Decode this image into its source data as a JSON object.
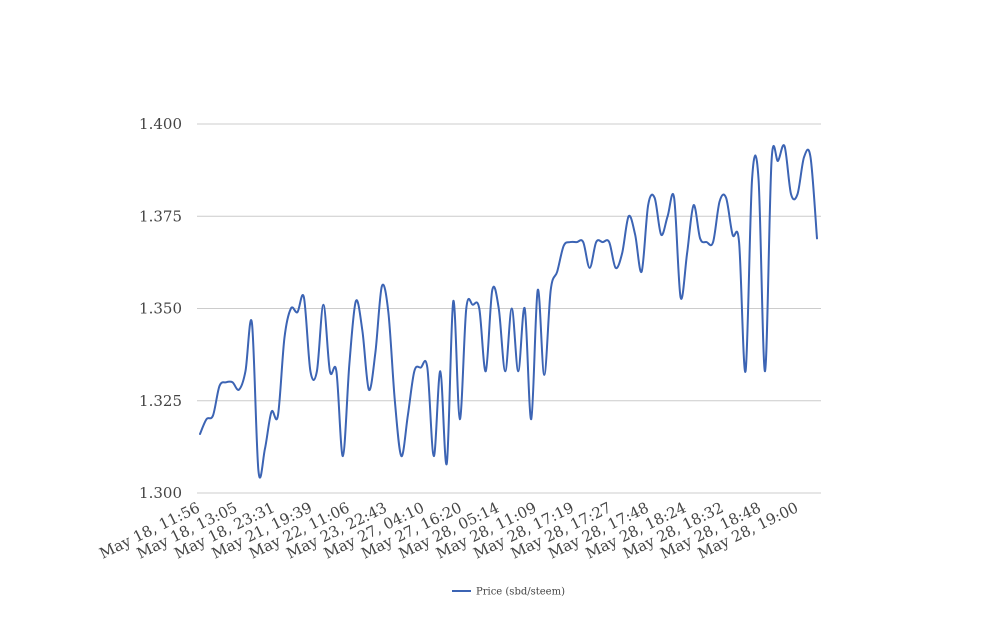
{
  "chart_data": {
    "type": "line",
    "title": "",
    "xlabel": "",
    "ylabel": "",
    "ylim": [
      1.3,
      1.4
    ],
    "y_ticks": [
      "1.300",
      "1.325",
      "1.350",
      "1.375",
      "1.400"
    ],
    "y_tick_values": [
      1.3,
      1.325,
      1.35,
      1.375,
      1.4
    ],
    "x_tick_labels": [
      "May 18, 11:56",
      "May 18, 13:05",
      "May 18, 23:31",
      "May 21, 19:39",
      "May 22, 11:06",
      "May 23, 22:43",
      "May 27, 04:10",
      "May 27, 16:20",
      "May 28, 05:14",
      "May 28, 11:09",
      "May 28, 17:19",
      "May 28, 17:27",
      "May 28, 17:48",
      "May 28, 18:24",
      "May 28, 18:32",
      "May 28, 18:48",
      "May 28, 19:00"
    ],
    "grid": true,
    "legend_position": "bottom",
    "series": [
      {
        "name": "Price (sbd/steem)",
        "color": "#3c64b4",
        "values": [
          1.316,
          1.32,
          1.321,
          1.329,
          1.33,
          1.33,
          1.328,
          1.333,
          1.346,
          1.306,
          1.312,
          1.322,
          1.321,
          1.342,
          1.35,
          1.349,
          1.353,
          1.333,
          1.333,
          1.351,
          1.333,
          1.333,
          1.31,
          1.335,
          1.352,
          1.344,
          1.328,
          1.338,
          1.356,
          1.349,
          1.325,
          1.31,
          1.321,
          1.333,
          1.334,
          1.334,
          1.31,
          1.333,
          1.308,
          1.352,
          1.32,
          1.35,
          1.351,
          1.35,
          1.333,
          1.355,
          1.35,
          1.333,
          1.35,
          1.333,
          1.35,
          1.32,
          1.355,
          1.332,
          1.355,
          1.36,
          1.367,
          1.368,
          1.368,
          1.368,
          1.361,
          1.368,
          1.368,
          1.368,
          1.361,
          1.365,
          1.375,
          1.37,
          1.36,
          1.378,
          1.38,
          1.37,
          1.375,
          1.38,
          1.353,
          1.365,
          1.378,
          1.369,
          1.368,
          1.368,
          1.379,
          1.38,
          1.37,
          1.368,
          1.333,
          1.385,
          1.385,
          1.333,
          1.39,
          1.39,
          1.394,
          1.381,
          1.381,
          1.391,
          1.391,
          1.369
        ]
      }
    ]
  }
}
